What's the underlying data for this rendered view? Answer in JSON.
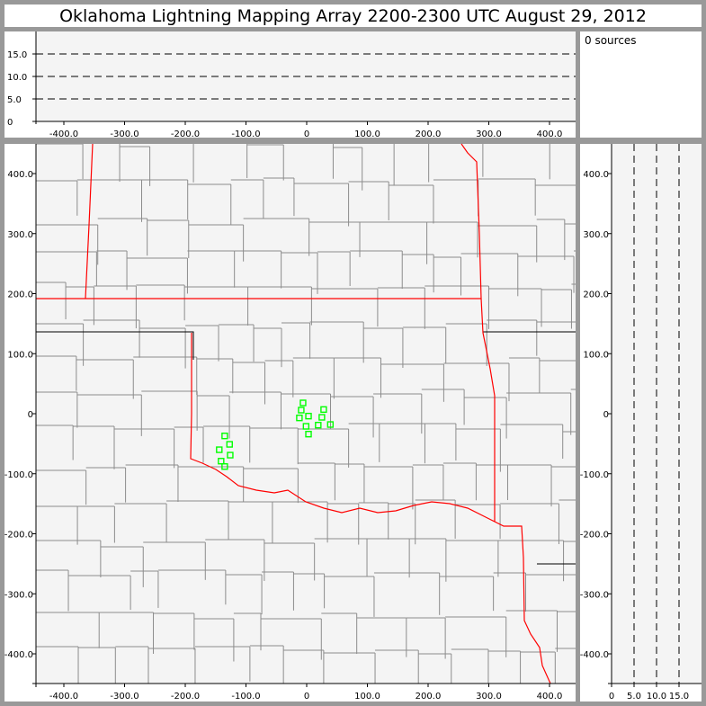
{
  "title": "Oklahoma Lightning Mapping Array   2200-2300 UTC  August 29, 2012",
  "sources_label": "0 sources",
  "colors": {
    "background": "#f4f4f4",
    "county": "#8c8c8c",
    "state": "#ff0000",
    "station": "#00ff00",
    "frame": "#999999"
  },
  "chart_data": [
    {
      "type": "line",
      "panel": "altitude-vs-east",
      "xlim": [
        -450,
        450
      ],
      "ylim": [
        0,
        20
      ],
      "xticks": [
        "-400.0",
        "-300.0",
        "-200.0",
        "-100.0",
        "0",
        "100.0",
        "200.0",
        "300.0",
        "400.0"
      ],
      "yticks": [
        "0",
        "5.0",
        "10.0",
        "15.0"
      ],
      "grid": "dashed at 5, 10, 15",
      "points": []
    },
    {
      "type": "scatter",
      "panel": "plan-view",
      "xlim": [
        -450,
        450
      ],
      "ylim": [
        -450,
        450
      ],
      "xticks": [
        "-400.0",
        "-300.0",
        "-200.0",
        "-100.0",
        "0",
        "100.0",
        "200.0",
        "300.0",
        "400.0"
      ],
      "yticks": [
        "-400.0",
        "-300.0",
        "-200.0",
        "-100.0",
        "0",
        "100.0",
        "200.0",
        "300.0",
        "400.0"
      ],
      "stations": [
        [
          -6,
          18
        ],
        [
          -9,
          6
        ],
        [
          -12,
          -7
        ],
        [
          3,
          -4
        ],
        [
          28,
          7
        ],
        [
          25,
          -6
        ],
        [
          -1,
          -21
        ],
        [
          19,
          -19
        ],
        [
          39,
          -18
        ],
        [
          3,
          -34
        ],
        [
          -135,
          -37
        ],
        [
          -127,
          -51
        ],
        [
          -144,
          -60
        ],
        [
          -126,
          -69
        ],
        [
          -141,
          -79
        ],
        [
          -135,
          -88
        ]
      ]
    },
    {
      "type": "line",
      "panel": "north-vs-altitude",
      "xlim": [
        0,
        20
      ],
      "ylim": [
        -450,
        450
      ],
      "xticks": [
        "0",
        "5.0",
        "10.0",
        "15.0"
      ],
      "yticks": [
        "-400.0",
        "-300.0",
        "-200.0",
        "-100.0",
        "0",
        "100.0",
        "200.0",
        "300.0",
        "400.0"
      ],
      "grid": "dashed at 5, 10, 15",
      "points": []
    }
  ]
}
